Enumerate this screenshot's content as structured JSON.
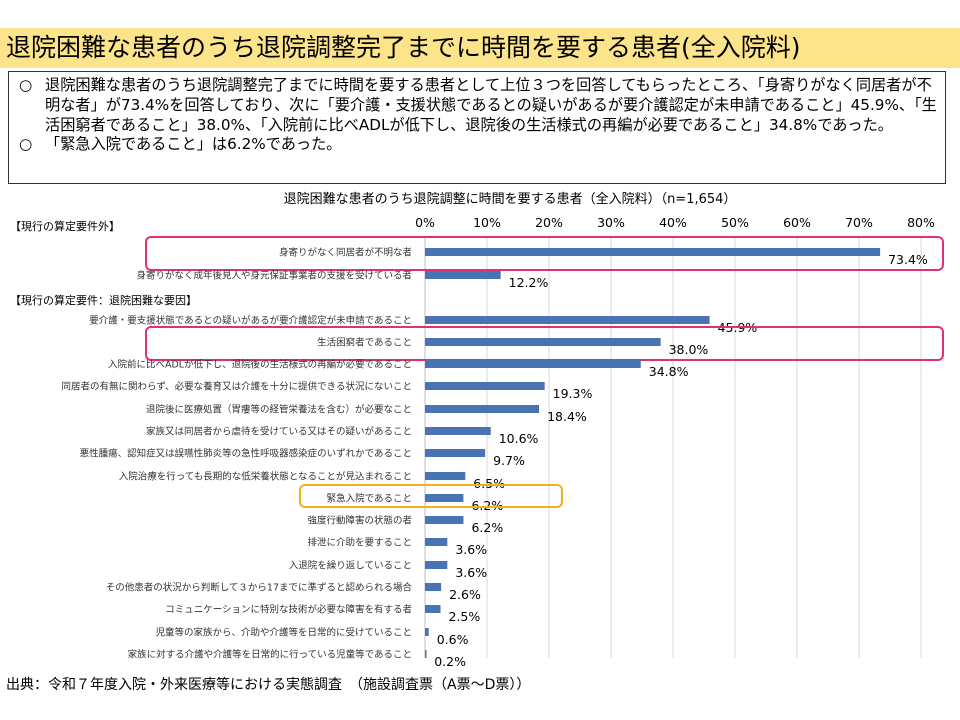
{
  "page": {
    "title": "退院困難な患者のうち退院調整完了までに時間を要する患者(全入院料)",
    "summary": {
      "bullet": "○",
      "points": [
        "退院困難な患者のうち退院調整完了までに時間を要する患者として上位３つを回答してもらったところ、「身寄りがなく同居者が不明な者」が73.4%を回答しており、次に「要介護・支援状態であるとの疑いがあるが要介護認定が未申請であること」45.9%、「生活困窮者であること」38.0%、「入院前に比べADLが低下し、退院後の生活様式の再編が必要であること」34.8%であった。",
        "「緊急入院であること」は6.2%であった。"
      ]
    },
    "footer": "出典：令和７年度入院・外来医療等における実態調査　（施設調査票（A票～D票））"
  },
  "colors": {
    "bar": "#4a73b3",
    "highlight_pink": "#e0307a",
    "highlight_orange": "#f2b021",
    "title_bg": "#fbe48a",
    "grid": "#d9d9d9"
  },
  "chart_data": {
    "type": "bar",
    "orientation": "horizontal",
    "title": "退院困難な患者のうち退院調整に時間を要する患者（全入院料）（n=1,654）",
    "xlim": [
      0,
      80
    ],
    "x_ticks": [
      "0%",
      "10%",
      "20%",
      "30%",
      "40%",
      "50%",
      "60%",
      "70%",
      "80%"
    ],
    "groups": [
      {
        "label": "【現行の算定要件外】",
        "items": [
          {
            "category": "身寄りがなく同居者が不明な者",
            "value": 73.4,
            "label": "73.4%",
            "highlight": "pink"
          },
          {
            "category": "身寄りがなく成年後見人や身元保証事業者の支援を受けている者",
            "value": 12.2,
            "label": "12.2%"
          }
        ]
      },
      {
        "label": "【現行の算定要件：退院困難な要因】",
        "items": [
          {
            "category": "要介護・要支援状態であるとの疑いがあるが要介護認定が未申請であること",
            "value": 45.9,
            "label": "45.9%"
          },
          {
            "category": "生活困窮者であること",
            "value": 38.0,
            "label": "38.0%",
            "highlight": "pink"
          },
          {
            "category": "入院前に比べADLが低下し、退院後の生活様式の再編が必要であること",
            "value": 34.8,
            "label": "34.8%"
          },
          {
            "category": "同居者の有無に関わらず、必要な養育又は介護を十分に提供できる状況にないこと",
            "value": 19.3,
            "label": "19.3%"
          },
          {
            "category": "退院後に医療処置（胃瘻等の経管栄養法を含む）が必要なこと",
            "value": 18.4,
            "label": "18.4%"
          },
          {
            "category": "家族又は同居者から虐待を受けている又はその疑いがあること",
            "value": 10.6,
            "label": "10.6%"
          },
          {
            "category": "悪性腫瘍、認知症又は誤嚥性肺炎等の急性呼吸器感染症のいずれかであること",
            "value": 9.7,
            "label": "9.7%"
          },
          {
            "category": "入院治療を行っても長期的な低栄養状態となることが見込まれること",
            "value": 6.5,
            "label": "6.5%"
          },
          {
            "category": "緊急入院であること",
            "value": 6.2,
            "label": "6.2%",
            "highlight": "orange"
          },
          {
            "category": "強度行動障害の状態の者",
            "value": 6.2,
            "label": "6.2%"
          },
          {
            "category": "排泄に介助を要すること",
            "value": 3.6,
            "label": "3.6%"
          },
          {
            "category": "入退院を繰り返していること",
            "value": 3.6,
            "label": "3.6%"
          },
          {
            "category": "その他患者の状況から判断して３から17までに準ずると認められる場合",
            "value": 2.6,
            "label": "2.6%"
          },
          {
            "category": "コミュニケーションに特別な技術が必要な障害を有する者",
            "value": 2.5,
            "label": "2.5%"
          },
          {
            "category": "児童等の家族から、介助や介護等を日常的に受けていること",
            "value": 0.6,
            "label": "0.6%"
          },
          {
            "category": "家族に対する介護や介護等を日常的に行っている児童等であること",
            "value": 0.2,
            "label": "0.2%"
          }
        ]
      }
    ]
  }
}
